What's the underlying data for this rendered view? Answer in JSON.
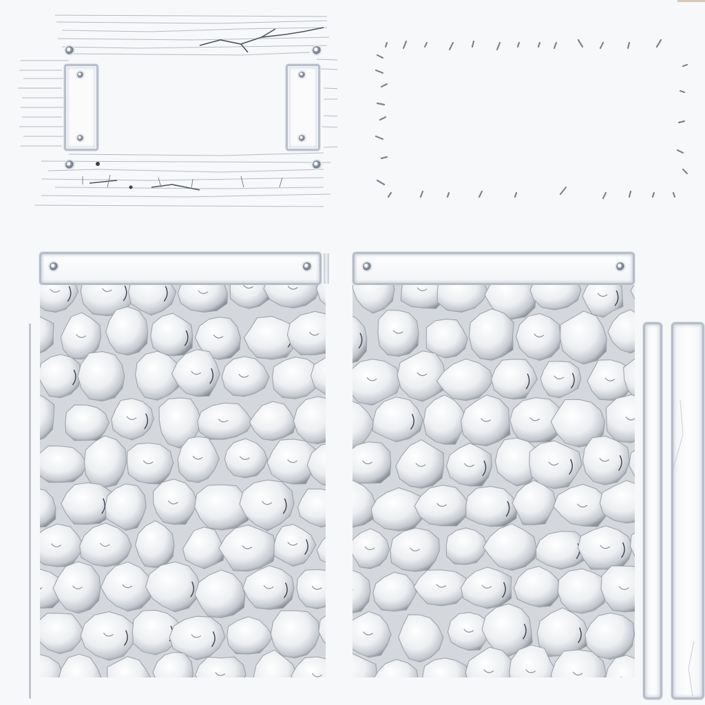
{
  "sheet": {
    "kind": "texture-atlas",
    "background_color": "#f7f8fa",
    "accent_colors": {
      "metal_frame": "#b9c0cc",
      "rivet": "#6f7683",
      "stone_shadow": "#8a8f97",
      "crack_line": "#3a3f48"
    }
  },
  "regions": [
    {
      "name": "wooden-plank-sign",
      "icons": [
        "rivet-icon",
        "bracket-icon"
      ]
    },
    {
      "name": "stitch-outline-panel",
      "icons": [
        "stitch-mark-icon"
      ]
    },
    {
      "name": "metal-bar-left",
      "icons": [
        "rivet-icon"
      ]
    },
    {
      "name": "metal-bar-right",
      "icons": [
        "rivet-icon"
      ]
    },
    {
      "name": "cobblestone-wall-left",
      "icons": [
        "stone-icon"
      ]
    },
    {
      "name": "cobblestone-wall-right",
      "icons": [
        "stone-icon"
      ]
    },
    {
      "name": "vertical-bar-narrow",
      "icons": []
    },
    {
      "name": "vertical-bar-wide",
      "icons": []
    }
  ]
}
